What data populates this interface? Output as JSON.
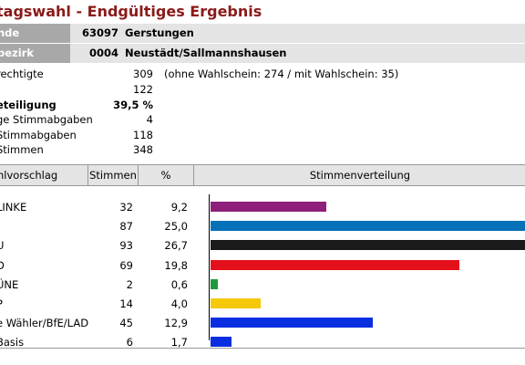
{
  "title": "tagswahl - Endgültiges Ergebnis",
  "header": {
    "rows": [
      {
        "label": "nde",
        "code": "63097",
        "name": "Gerstungen"
      },
      {
        "label": "bezirk",
        "code": "0004",
        "name": "Neustädt/Sallmannshausen"
      }
    ]
  },
  "stats": [
    {
      "label": "rechtigte",
      "value": "309",
      "note": "(ohne Wahlschein: 274 / mit Wahlschein: 35)",
      "bold": false
    },
    {
      "label": "",
      "value": "122",
      "note": "",
      "bold": false
    },
    {
      "label": "eteiligung",
      "value": "39,5 %",
      "note": "",
      "bold": true
    },
    {
      "label": "ge Stimmabgaben",
      "value": "4",
      "note": "",
      "bold": false
    },
    {
      "label": "Stimmabgaben",
      "value": "118",
      "note": "",
      "bold": false
    },
    {
      "label": "Stimmen",
      "value": "348",
      "note": "",
      "bold": false
    }
  ],
  "table": {
    "headers": {
      "party": "hlvorschlag",
      "votes": "Stimmen",
      "pct": "%",
      "dist": "Stimmenverteilung"
    },
    "rows": [
      {
        "party": "LINKE",
        "votes": "32",
        "pct": "9,2",
        "value": 9.2,
        "color": "#8e1f7a"
      },
      {
        "party": "",
        "votes": "87",
        "pct": "25,0",
        "value": 25.0,
        "color": "#0670b8"
      },
      {
        "party": "U",
        "votes": "93",
        "pct": "26,7",
        "value": 26.7,
        "color": "#1a1a1a"
      },
      {
        "party": "D",
        "votes": "69",
        "pct": "19,8",
        "value": 19.8,
        "color": "#e3101b"
      },
      {
        "party": "ÜNE",
        "votes": "2",
        "pct": "0,6",
        "value": 0.6,
        "color": "#1e9a3c"
      },
      {
        "party": "P",
        "votes": "14",
        "pct": "4,0",
        "value": 4.0,
        "color": "#f5c80a"
      },
      {
        "party": "e Wähler/BfE/LAD",
        "votes": "45",
        "pct": "12,9",
        "value": 12.9,
        "color": "#0a2fe0"
      },
      {
        "party": "Basis",
        "votes": "6",
        "pct": "1,7",
        "value": 1.7,
        "color": "#0a2fe0"
      }
    ]
  }
}
